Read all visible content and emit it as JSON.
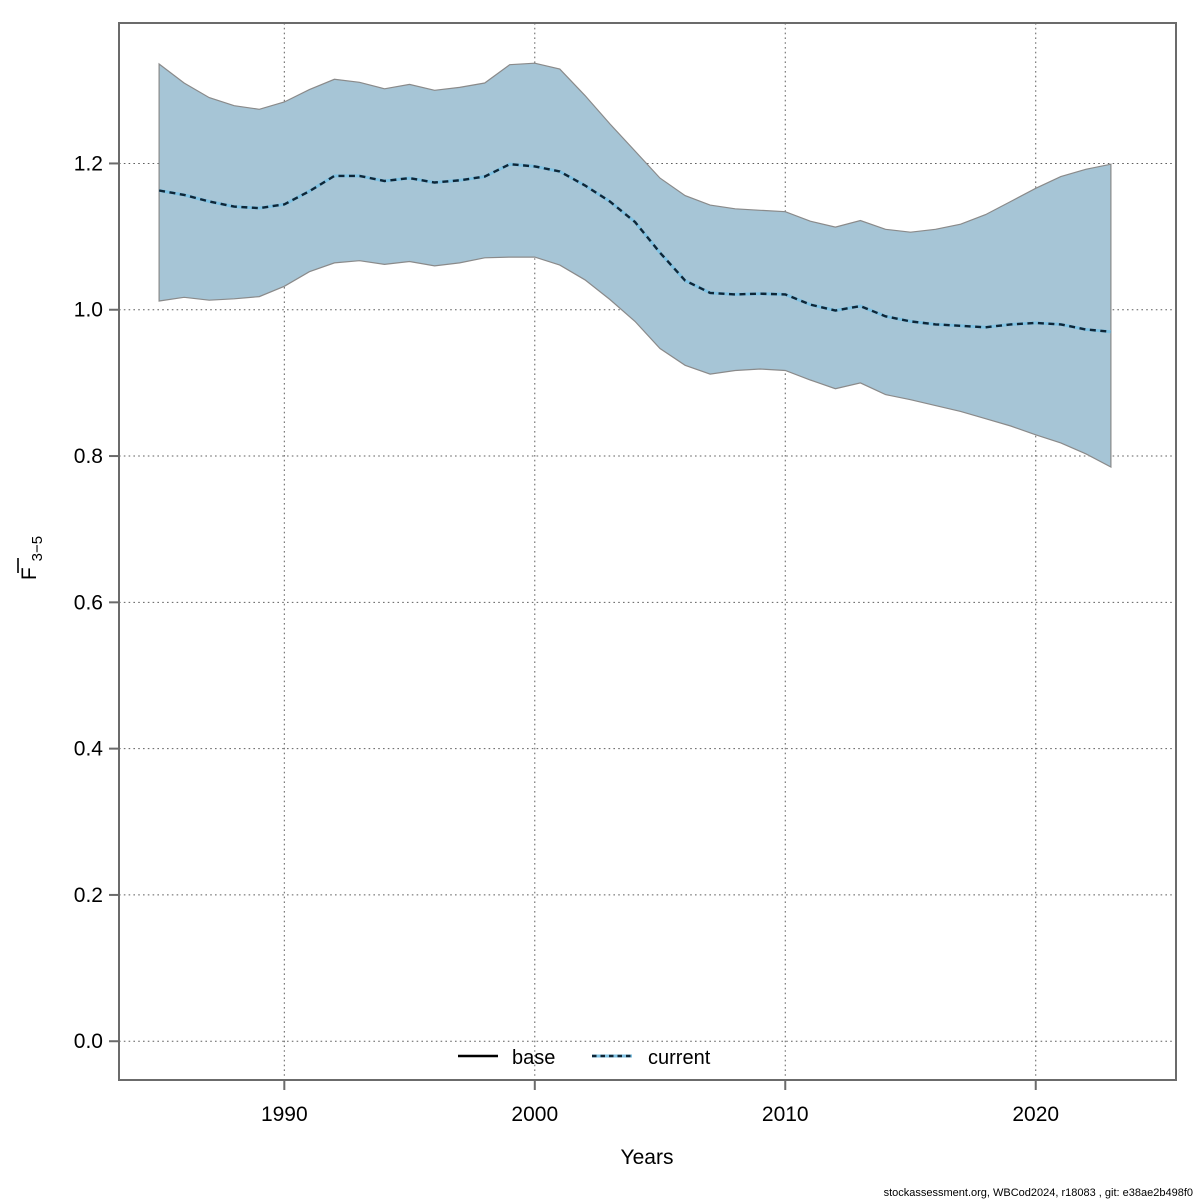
{
  "footer": {
    "text": "stockassessment.org, WBCod2024, r18083 , git: e38ae2b498f0"
  },
  "chart_data": {
    "type": "line",
    "title": "",
    "xlabel": "Years",
    "ylabel": {
      "text": "F",
      "overbar": true,
      "sub": "3−5"
    },
    "xlim": [
      1983.4,
      2025.6
    ],
    "ylim": [
      -0.053,
      1.392
    ],
    "grid": "dotted",
    "xticks": {
      "values": [
        1990,
        2000,
        2010,
        2020
      ],
      "labels": [
        "1990",
        "2000",
        "2010",
        "2020"
      ]
    },
    "yticks": {
      "values": [
        0.0,
        0.2,
        0.4,
        0.6,
        0.8,
        1.0,
        1.2
      ],
      "labels": [
        "0.0",
        "0.2",
        "0.4",
        "0.6",
        "0.8",
        "1.0",
        "1.2"
      ]
    },
    "legend": {
      "position": "bottom-center-inside",
      "items": [
        {
          "label": "base",
          "style": "solid-black"
        },
        {
          "label": "current",
          "style": "dashed-blue"
        }
      ]
    },
    "x": [
      1985,
      1986,
      1987,
      1988,
      1989,
      1990,
      1991,
      1992,
      1993,
      1994,
      1995,
      1996,
      1997,
      1998,
      1999,
      2000,
      2001,
      2002,
      2003,
      2004,
      2005,
      2006,
      2007,
      2008,
      2009,
      2010,
      2011,
      2012,
      2013,
      2014,
      2015,
      2016,
      2017,
      2018,
      2019,
      2020,
      2021,
      2022,
      2023
    ],
    "series": [
      {
        "name": "current-median",
        "values": [
          1.163,
          1.157,
          1.148,
          1.141,
          1.139,
          1.144,
          1.162,
          1.183,
          1.183,
          1.176,
          1.18,
          1.174,
          1.177,
          1.182,
          1.199,
          1.196,
          1.189,
          1.17,
          1.148,
          1.12,
          1.078,
          1.04,
          1.023,
          1.021,
          1.022,
          1.021,
          1.007,
          0.999,
          1.005,
          0.991,
          0.984,
          0.98,
          0.978,
          0.976,
          0.98,
          0.982,
          0.98,
          0.973,
          0.97
        ]
      },
      {
        "name": "ci-lower",
        "values": [
          1.012,
          1.017,
          1.013,
          1.015,
          1.018,
          1.032,
          1.052,
          1.064,
          1.067,
          1.062,
          1.066,
          1.06,
          1.064,
          1.071,
          1.072,
          1.072,
          1.061,
          1.041,
          1.014,
          0.984,
          0.947,
          0.924,
          0.912,
          0.917,
          0.919,
          0.917,
          0.904,
          0.892,
          0.9,
          0.884,
          0.877,
          0.869,
          0.861,
          0.851,
          0.841,
          0.829,
          0.818,
          0.803,
          0.785
        ]
      },
      {
        "name": "ci-upper",
        "values": [
          1.336,
          1.31,
          1.29,
          1.279,
          1.274,
          1.284,
          1.301,
          1.315,
          1.311,
          1.302,
          1.308,
          1.3,
          1.304,
          1.31,
          1.335,
          1.337,
          1.329,
          1.293,
          1.254,
          1.217,
          1.18,
          1.156,
          1.143,
          1.138,
          1.136,
          1.134,
          1.121,
          1.113,
          1.122,
          1.11,
          1.106,
          1.11,
          1.117,
          1.13,
          1.148,
          1.166,
          1.182,
          1.192,
          1.199
        ]
      }
    ],
    "colors": {
      "band_fill": "#a6c5d6",
      "band_edge": "#8a8a8a",
      "median_underlay": "#7fc2e3",
      "median_dash": "#0e2637",
      "base_line": "#000000",
      "grid": "#5f5f5f",
      "frame": "#6b6b6b",
      "text": "#000000"
    }
  }
}
